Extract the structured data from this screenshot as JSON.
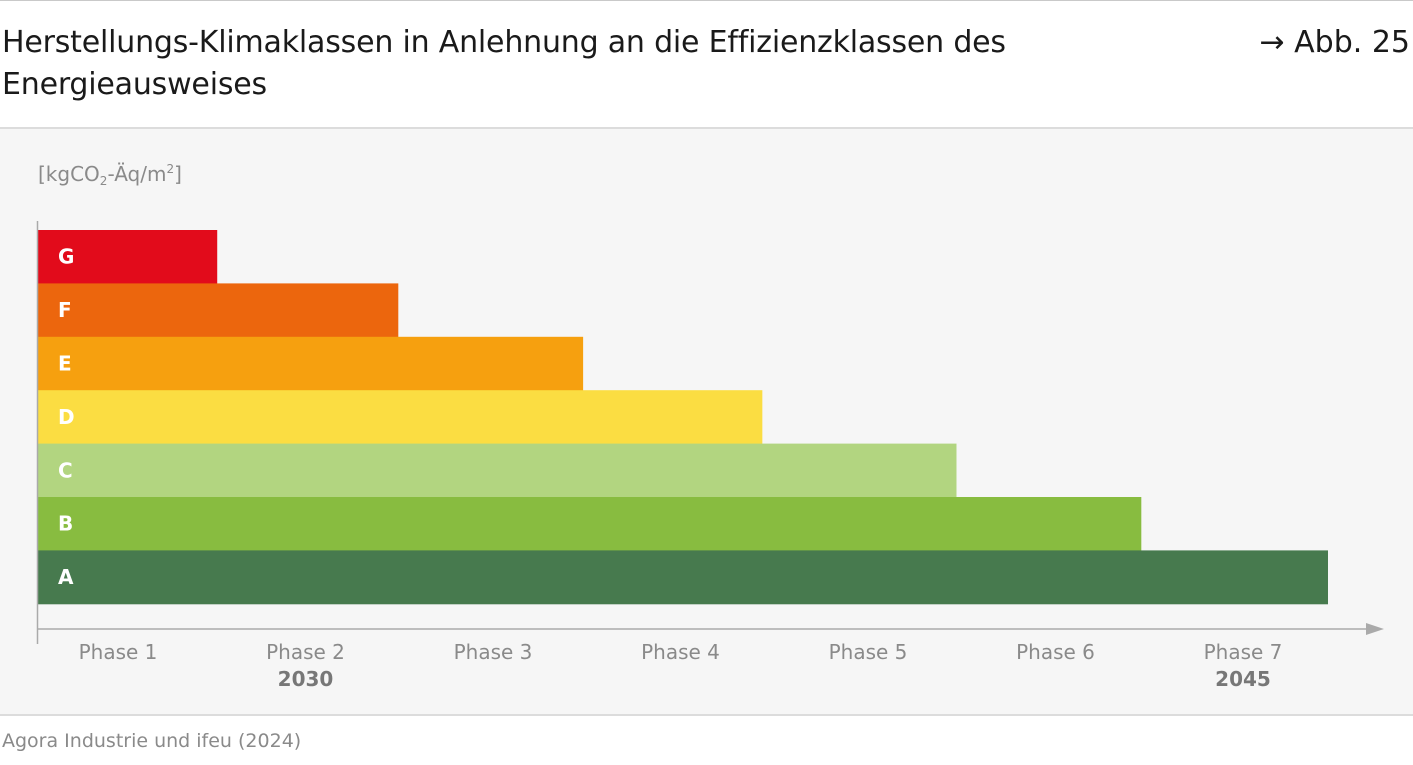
{
  "header": {
    "title": "Herstellungs-Klimaklassen in Anlehnung an die Effizienzklassen des Energieausweises",
    "figure_ref": "→ Abb. 25"
  },
  "unit": {
    "prefix": "[kgCO",
    "sub": "2",
    "middle": "-Äq/m",
    "sup": "2",
    "suffix": "]"
  },
  "source": "Agora Industrie und ifeu (2024)",
  "colors": {
    "G": "#e20b1b",
    "F": "#ec660d",
    "E": "#f6a00f",
    "D": "#fbdd42",
    "C": "#b2d580",
    "B": "#88bc40",
    "A": "#477a4e",
    "axis": "#aaaaaa",
    "tick_label": "#8a8a8a",
    "year_label": "#777777",
    "class_label": "#ffffff"
  },
  "chart_data": {
    "type": "bar",
    "orientation": "horizontal",
    "categories": [
      "G",
      "F",
      "E",
      "D",
      "C",
      "B",
      "A"
    ],
    "values": [
      0.96,
      1.93,
      2.92,
      3.88,
      4.92,
      5.91,
      6.91
    ],
    "x_ticks": [
      "Phase 1",
      "Phase 2",
      "Phase 3",
      "Phase 4",
      "Phase 5",
      "Phase 6",
      "Phase 7"
    ],
    "x_tick_sublabels": [
      "",
      "2030",
      "",
      "",
      "",
      "",
      "2045"
    ],
    "xlim": [
      0,
      7.5
    ],
    "ylabel": "[kgCO2-Äq/m2]",
    "grid": false,
    "legend": "none"
  }
}
